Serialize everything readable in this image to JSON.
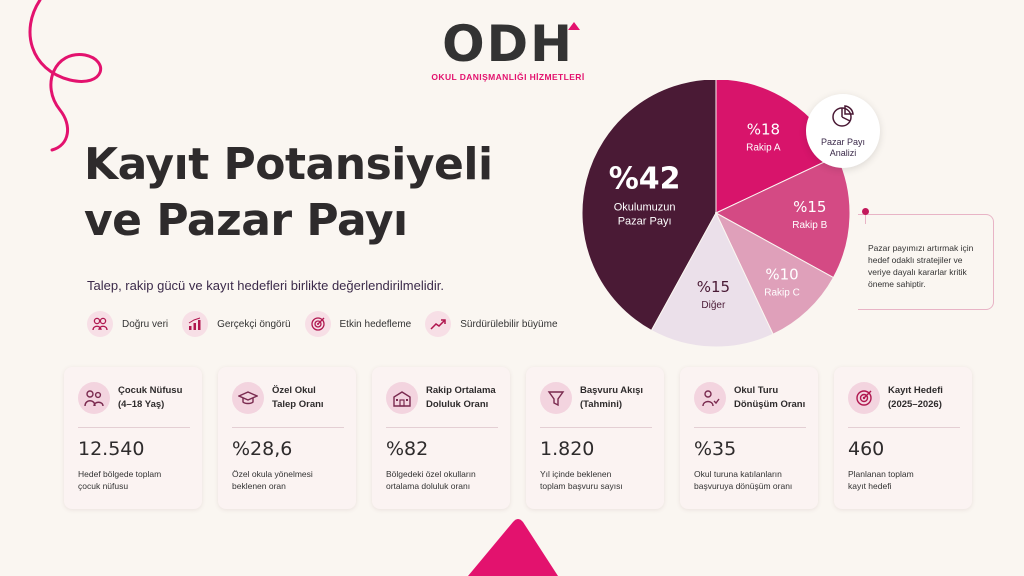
{
  "brand": {
    "logo_text": "ODH",
    "tagline": "OKUL DANIŞMANLIĞI HİZMETLERİ"
  },
  "hero": {
    "title_line1": "Kayıt Potansiyeli",
    "title_line2": "ve Pazar Payı",
    "subtitle": "Talep, rakip gücü ve kayıt hedefleri birlikte değerlendirilmelidir."
  },
  "features": [
    {
      "icon": "people-icon",
      "label": "Doğru veri"
    },
    {
      "icon": "bar-chart-icon",
      "label": "Gerçekçi öngörü"
    },
    {
      "icon": "target-icon",
      "label": "Etkin hedefleme"
    },
    {
      "icon": "trend-up-icon",
      "label": "Sürdürülebilir büyüme"
    }
  ],
  "pie_badge": {
    "icon": "pie-chart-icon",
    "line1": "Pazar Payı",
    "line2": "Analizi"
  },
  "callout": "Pazar payımızı artırmak için hedef odaklı stratejiler ve veriye dayalı kararlar kritik öneme sahiptir.",
  "chart_data": {
    "type": "pie",
    "slices": [
      {
        "label": "Okulumuzun Pazar Payı",
        "value": 42,
        "display": "%42",
        "color": "#4a1a35"
      },
      {
        "label": "Rakip A",
        "value": 18,
        "display": "%18",
        "color": "#d8146b"
      },
      {
        "label": "Rakip B",
        "value": 15,
        "display": "%15",
        "color": "#d44a84"
      },
      {
        "label": "Rakip C",
        "value": 10,
        "display": "%10",
        "color": "#dfa0ba"
      },
      {
        "label": "Diğer",
        "value": 15,
        "display": "%15",
        "color": "#ebe0ea"
      }
    ]
  },
  "cards": [
    {
      "icon": "family-icon",
      "title": "Çocuk Nüfusu\n(4–18 Yaş)",
      "value": "12.540",
      "desc": "Hedef bölgede toplam\nçocuk nüfusu"
    },
    {
      "icon": "graduation-cap-icon",
      "title": "Özel Okul\nTalep Oranı",
      "value": "%28,6",
      "desc": "Özel okula yönelmesi\nbeklenen oran"
    },
    {
      "icon": "school-building-icon",
      "title": "Rakip Ortalama\nDoluluk Oranı",
      "value": "%82",
      "desc": "Bölgedeki özel okulların\nortalama doluluk oranı"
    },
    {
      "icon": "funnel-icon",
      "title": "Başvuru Akışı\n(Tahmini)",
      "value": "1.820",
      "desc": "Yıl içinde beklenen\ntoplam başvuru sayısı"
    },
    {
      "icon": "tour-person-icon",
      "title": "Okul Turu\nDönüşüm Oranı",
      "value": "%35",
      "desc": "Okul turuna katılanların\nbaşvuruya dönüşüm oranı"
    },
    {
      "icon": "target-icon",
      "title": "Kayıt Hedefi\n(2025–2026)",
      "value": "460",
      "desc": "Planlanan toplam\nkayıt hedefi"
    }
  ]
}
